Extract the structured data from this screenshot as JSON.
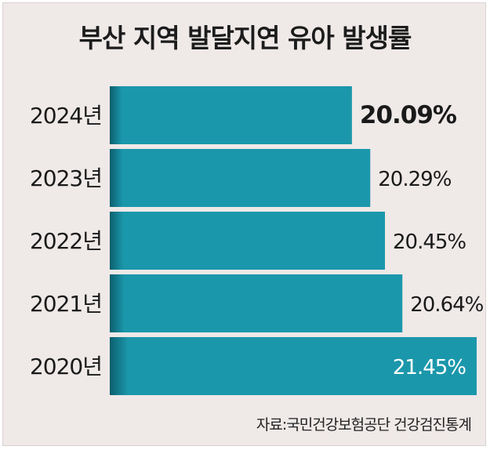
{
  "title": "부산 지역 발달지연 유아 발생률",
  "source": "자료:국민건강보험공단 건강검진통계",
  "colors": {
    "bar": "#1b97ab",
    "bar_shadow": "#0c5f6d",
    "background": "#efe9e8"
  },
  "chart_data": {
    "type": "bar",
    "orientation": "horizontal",
    "title": "부산 지역 발달지연 유아 발생률",
    "categories": [
      "2024년",
      "2023년",
      "2022년",
      "2021년",
      "2020년"
    ],
    "values": [
      20.09,
      20.29,
      20.45,
      20.64,
      21.45
    ],
    "value_labels": [
      "20.09%",
      "20.29%",
      "20.45%",
      "20.64%",
      "21.45%"
    ],
    "unit": "%",
    "xlim": [
      17.45,
      21.45
    ]
  }
}
